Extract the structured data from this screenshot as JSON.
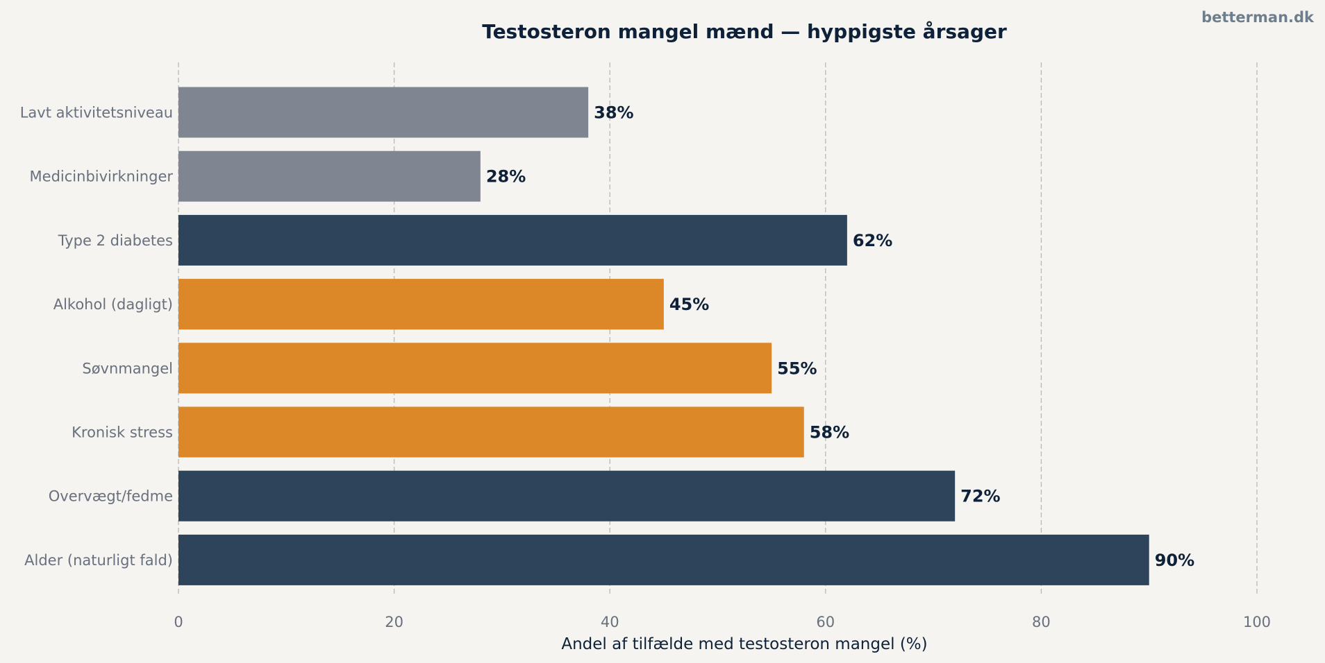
{
  "watermark": "betterman.dk",
  "chart_data": {
    "type": "bar",
    "orientation": "horizontal",
    "title": "Testosteron mangel mænd — hyppigste årsager",
    "xlabel": "Andel af tilfælde med testosteron mangel (%)",
    "ylabel": "",
    "xlim": [
      0,
      100
    ],
    "xticks": [
      0,
      20,
      40,
      60,
      80,
      100
    ],
    "grid": "vertical-dashed",
    "categories": [
      "Lavt aktivitetsniveau",
      "Medicinbivirkninger",
      "Type 2 diabetes",
      "Alkohol (dagligt)",
      "Søvnmangel",
      "Kronisk stress",
      "Overvægt/fedme",
      "Alder (naturligt fald)"
    ],
    "values": [
      38,
      28,
      62,
      45,
      55,
      58,
      72,
      90
    ],
    "value_labels": [
      "38%",
      "28%",
      "62%",
      "45%",
      "55%",
      "58%",
      "72%",
      "90%"
    ],
    "colors": [
      "#7f8591",
      "#7f8591",
      "#2e445a",
      "#dc8829",
      "#dc8829",
      "#dc8829",
      "#2e445a",
      "#2e445a"
    ]
  }
}
